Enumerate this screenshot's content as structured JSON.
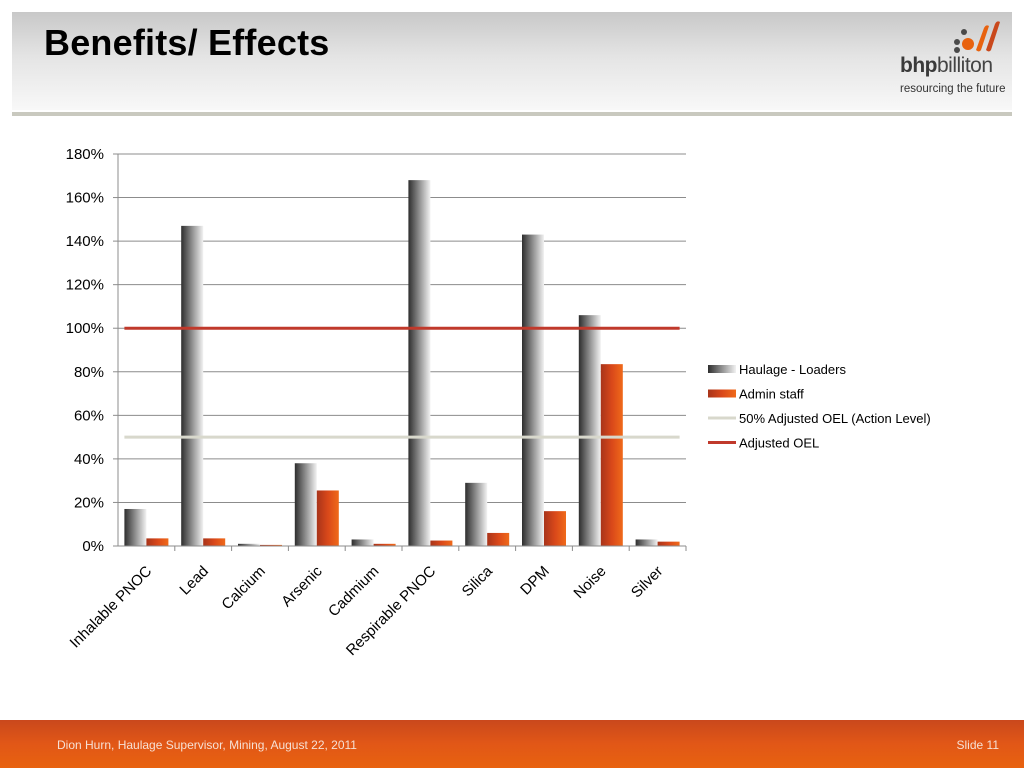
{
  "slide": {
    "title": "Benefits/ Effects",
    "footer_text": "Dion Hurn, Haulage Supervisor, Mining, August  22, 2011",
    "slide_number": "Slide 11"
  },
  "logo": {
    "name_bold": "bhp",
    "name_rest": "billiton",
    "tagline": "resourcing the future",
    "colors": [
      "#e8620f",
      "#c9481c",
      "#4a4a4a"
    ]
  },
  "chart_data": {
    "type": "bar",
    "categories": [
      "Inhalable PNOC",
      "Lead",
      "Calcium",
      "Arsenic",
      "Cadmium",
      "Respirable PNOC",
      "Silica",
      "DPM",
      "Noise",
      "Silver"
    ],
    "series": [
      {
        "name": "Haulage - Loaders",
        "values": [
          17,
          147,
          1,
          38,
          3,
          168,
          29,
          143,
          106,
          3
        ],
        "color": "#7a7a7a"
      },
      {
        "name": "Admin staff",
        "values": [
          3.5,
          3.5,
          0.5,
          25.5,
          1,
          2.5,
          6,
          16,
          83.5,
          2
        ],
        "color": "#d9481a"
      }
    ],
    "reference_lines": [
      {
        "name": "50% Adjusted OEL (Action Level)",
        "value": 50,
        "color": "#d8d8cc"
      },
      {
        "name": "Adjusted OEL",
        "value": 100,
        "color": "#c0392b"
      }
    ],
    "ylim": [
      0,
      180
    ],
    "y_ticks": [
      "0%",
      "20%",
      "40%",
      "60%",
      "80%",
      "100%",
      "120%",
      "140%",
      "160%",
      "180%"
    ],
    "y_tick_values": [
      0,
      20,
      40,
      60,
      80,
      100,
      120,
      140,
      160,
      180
    ],
    "grid": true,
    "legend_position": "right",
    "title": "",
    "xlabel": "",
    "ylabel": ""
  }
}
